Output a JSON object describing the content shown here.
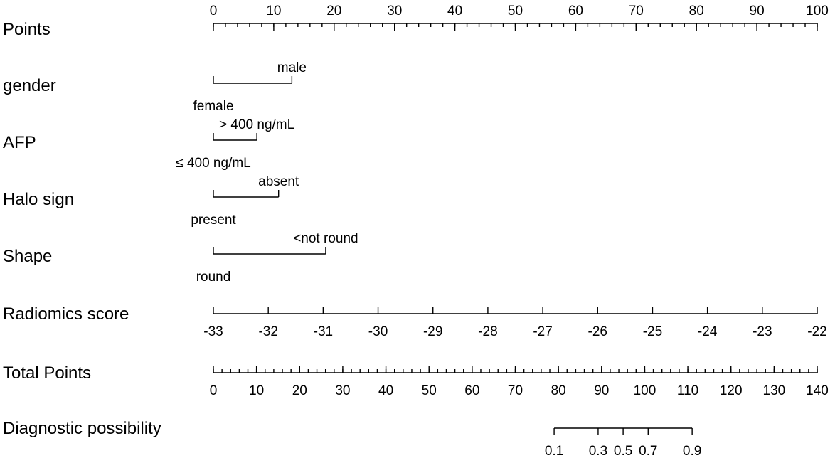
{
  "chart_data": {
    "type": "nomogram",
    "rows": [
      {
        "label": "Points",
        "kind": "scale",
        "ticks": [
          {
            "label": "0",
            "value": 0
          },
          {
            "label": "10",
            "value": 10
          },
          {
            "label": "20",
            "value": 20
          },
          {
            "label": "30",
            "value": 30
          },
          {
            "label": "40",
            "value": 40
          },
          {
            "label": "50",
            "value": 50
          },
          {
            "label": "60",
            "value": 60
          },
          {
            "label": "70",
            "value": 70
          },
          {
            "label": "80",
            "value": 80
          },
          {
            "label": "90",
            "value": 90
          },
          {
            "label": "100",
            "value": 100
          }
        ],
        "minor_step": 2,
        "tick_labels_position": "above"
      },
      {
        "label": "gender",
        "kind": "categorical",
        "levels": [
          {
            "label": "female",
            "points": 0,
            "position": "below"
          },
          {
            "label": "male",
            "points": 13,
            "position": "above"
          }
        ]
      },
      {
        "label": "AFP",
        "kind": "categorical",
        "levels": [
          {
            "label": "≤ 400 ng/mL",
            "points": 0,
            "position": "below"
          },
          {
            "label": "> 400 ng/mL",
            "points": 7.2,
            "position": "above"
          }
        ]
      },
      {
        "label": "Halo  sign",
        "kind": "categorical",
        "levels": [
          {
            "label": "present",
            "points": 0,
            "position": "below"
          },
          {
            "label": "absent",
            "points": 10.8,
            "position": "above"
          }
        ]
      },
      {
        "label": "Shape",
        "kind": "categorical",
        "levels": [
          {
            "label": "round",
            "points": 0,
            "position": "below"
          },
          {
            "label": "<not round",
            "points": 18.6,
            "position": "above"
          }
        ]
      },
      {
        "label": "Radiomics  score",
        "kind": "scale",
        "ticks": [
          {
            "label": "-33",
            "value": -33
          },
          {
            "label": "-32",
            "value": -32
          },
          {
            "label": "-31",
            "value": -31
          },
          {
            "label": "-30",
            "value": -30
          },
          {
            "label": "-29",
            "value": -29
          },
          {
            "label": "-28",
            "value": -28
          },
          {
            "label": "-27",
            "value": -27
          },
          {
            "label": "-26",
            "value": -26
          },
          {
            "label": "-25",
            "value": -25
          },
          {
            "label": "-24",
            "value": -24
          },
          {
            "label": "-23",
            "value": -23
          },
          {
            "label": "-22",
            "value": -22
          }
        ],
        "points_range": [
          0,
          100
        ],
        "value_range": [
          -33,
          -22
        ],
        "tick_labels_position": "below"
      },
      {
        "label": "Total Points",
        "kind": "scale",
        "ticks": [
          {
            "label": "0",
            "value": 0
          },
          {
            "label": "10",
            "value": 10
          },
          {
            "label": "20",
            "value": 20
          },
          {
            "label": "30",
            "value": 30
          },
          {
            "label": "40",
            "value": 40
          },
          {
            "label": "50",
            "value": 50
          },
          {
            "label": "60",
            "value": 60
          },
          {
            "label": "70",
            "value": 70
          },
          {
            "label": "80",
            "value": 80
          },
          {
            "label": "90",
            "value": 90
          },
          {
            "label": "100",
            "value": 100
          },
          {
            "label": "110",
            "value": 110
          },
          {
            "label": "120",
            "value": 120
          },
          {
            "label": "130",
            "value": 130
          },
          {
            "label": "140",
            "value": 140
          }
        ],
        "minor_step": 2,
        "value_range": [
          0,
          140
        ],
        "tick_labels_position": "below"
      },
      {
        "label": "Diagnostic possibility",
        "kind": "probability",
        "ticks": [
          {
            "label": "0.1",
            "total_points": 79.0
          },
          {
            "label": "0.3",
            "total_points": 89.2
          },
          {
            "label": "0.5",
            "total_points": 95.0
          },
          {
            "label": "0.7",
            "total_points": 100.8
          },
          {
            "label": "0.9",
            "total_points": 111.0
          }
        ],
        "tick_labels_position": "below"
      }
    ]
  }
}
